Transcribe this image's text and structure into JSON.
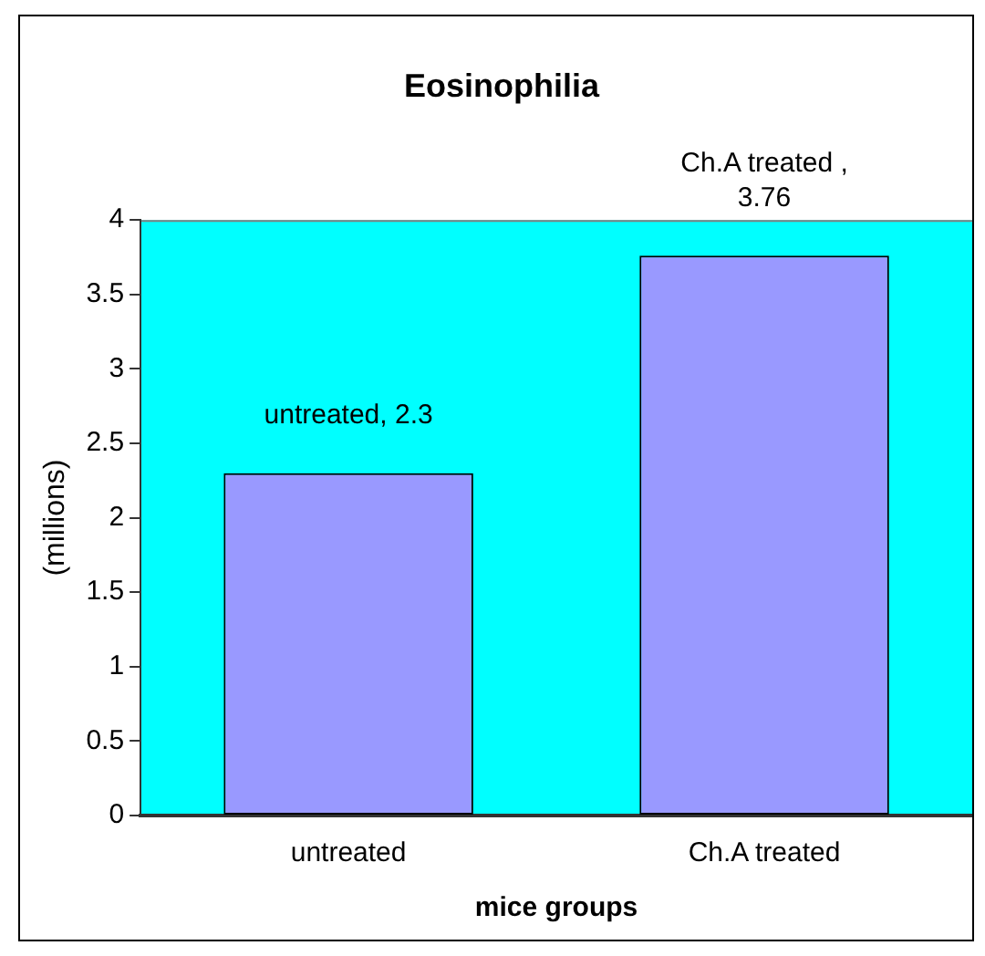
{
  "chart_data": {
    "type": "bar",
    "title": "Eosinophilia",
    "xlabel": "mice groups",
    "ylabel": "(millions)",
    "categories": [
      "untreated",
      "Ch.A treated"
    ],
    "values": [
      2.3,
      3.76
    ],
    "color": "#9999ff",
    "value_labels": [
      "untreated, 2.3",
      "Ch.A treated , 3.76"
    ],
    "ylim": [
      0,
      4
    ],
    "yticks": [
      0,
      0.5,
      1,
      1.5,
      2,
      2.5,
      3,
      3.5,
      4
    ],
    "grid": false,
    "legend": false
  }
}
